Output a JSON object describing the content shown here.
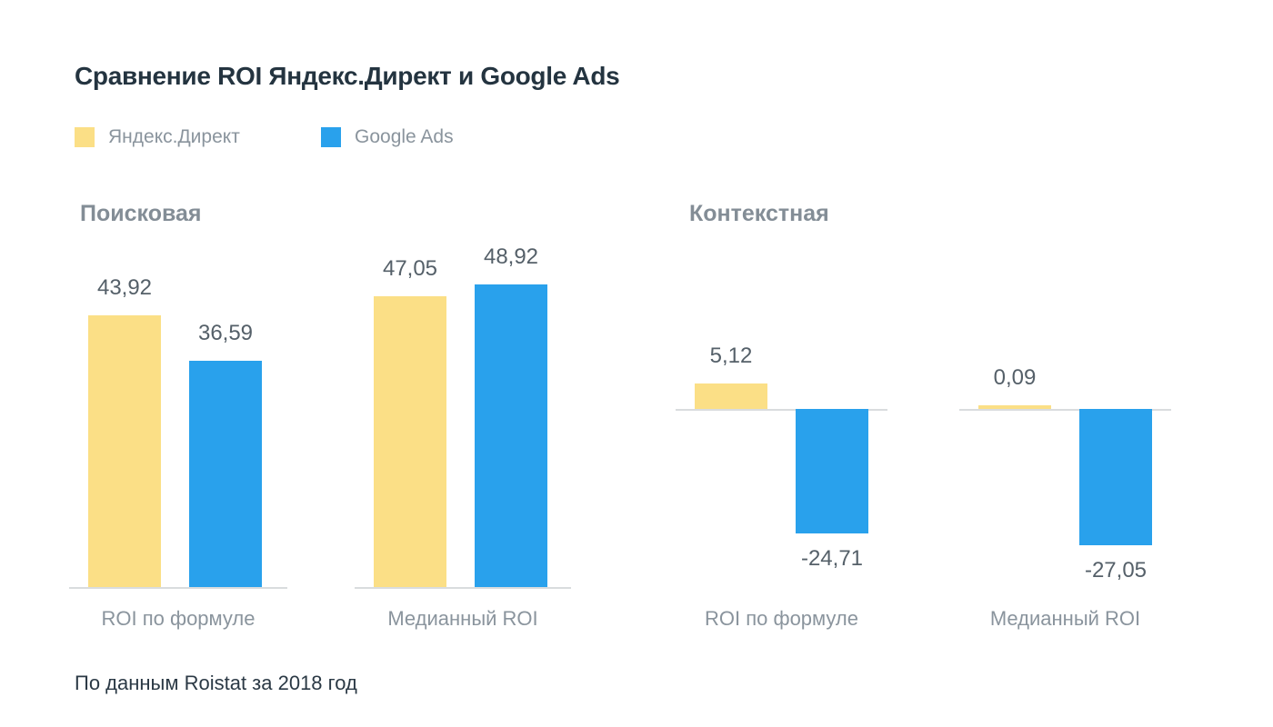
{
  "title": "Сравнение ROI Яндекс.Директ и Google Ads",
  "footer": "По данным Roistat за 2018 год",
  "legend": [
    {
      "label": "Яндекс.Директ",
      "color": "#FBDF86"
    },
    {
      "label": "Google Ads",
      "color": "#29A1EC"
    }
  ],
  "colors": {
    "yandex_yellow": "#FBDF86",
    "google_blue": "#29A1EC",
    "axis_line": "#D9DCDE",
    "title_text": "#243440",
    "group_title_text": "#838D96",
    "value_text": "#556069",
    "category_text": "#8A949D"
  },
  "chart_data": {
    "type": "bar",
    "title": "Сравнение ROI Яндекс.Директ и Google Ads",
    "source_note": "По данным Roistat за 2018 год",
    "legend_position": "top-left",
    "grid": false,
    "groups": [
      {
        "title": "Поисковая",
        "categories": [
          "ROI по формуле",
          "Медианный ROI"
        ],
        "series": [
          {
            "name": "Яндекс.Директ",
            "values": [
              43.92,
              47.05
            ]
          },
          {
            "name": "Google Ads",
            "values": [
              36.59,
              48.92
            ]
          }
        ],
        "value_labels": [
          [
            "43,92",
            "36,59"
          ],
          [
            "47,05",
            "48,92"
          ]
        ],
        "ylim": [
          0,
          50
        ]
      },
      {
        "title": "Контекстная",
        "categories": [
          "ROI по формуле",
          "Медианный ROI"
        ],
        "series": [
          {
            "name": "Яндекс.Директ",
            "values": [
              5.12,
              0.09
            ]
          },
          {
            "name": "Google Ads",
            "values": [
              -24.71,
              -27.05
            ]
          }
        ],
        "value_labels": [
          [
            "5,12",
            "-24,71"
          ],
          [
            "0,09",
            "-27,05"
          ]
        ],
        "ylim": [
          -35,
          10
        ]
      }
    ]
  }
}
